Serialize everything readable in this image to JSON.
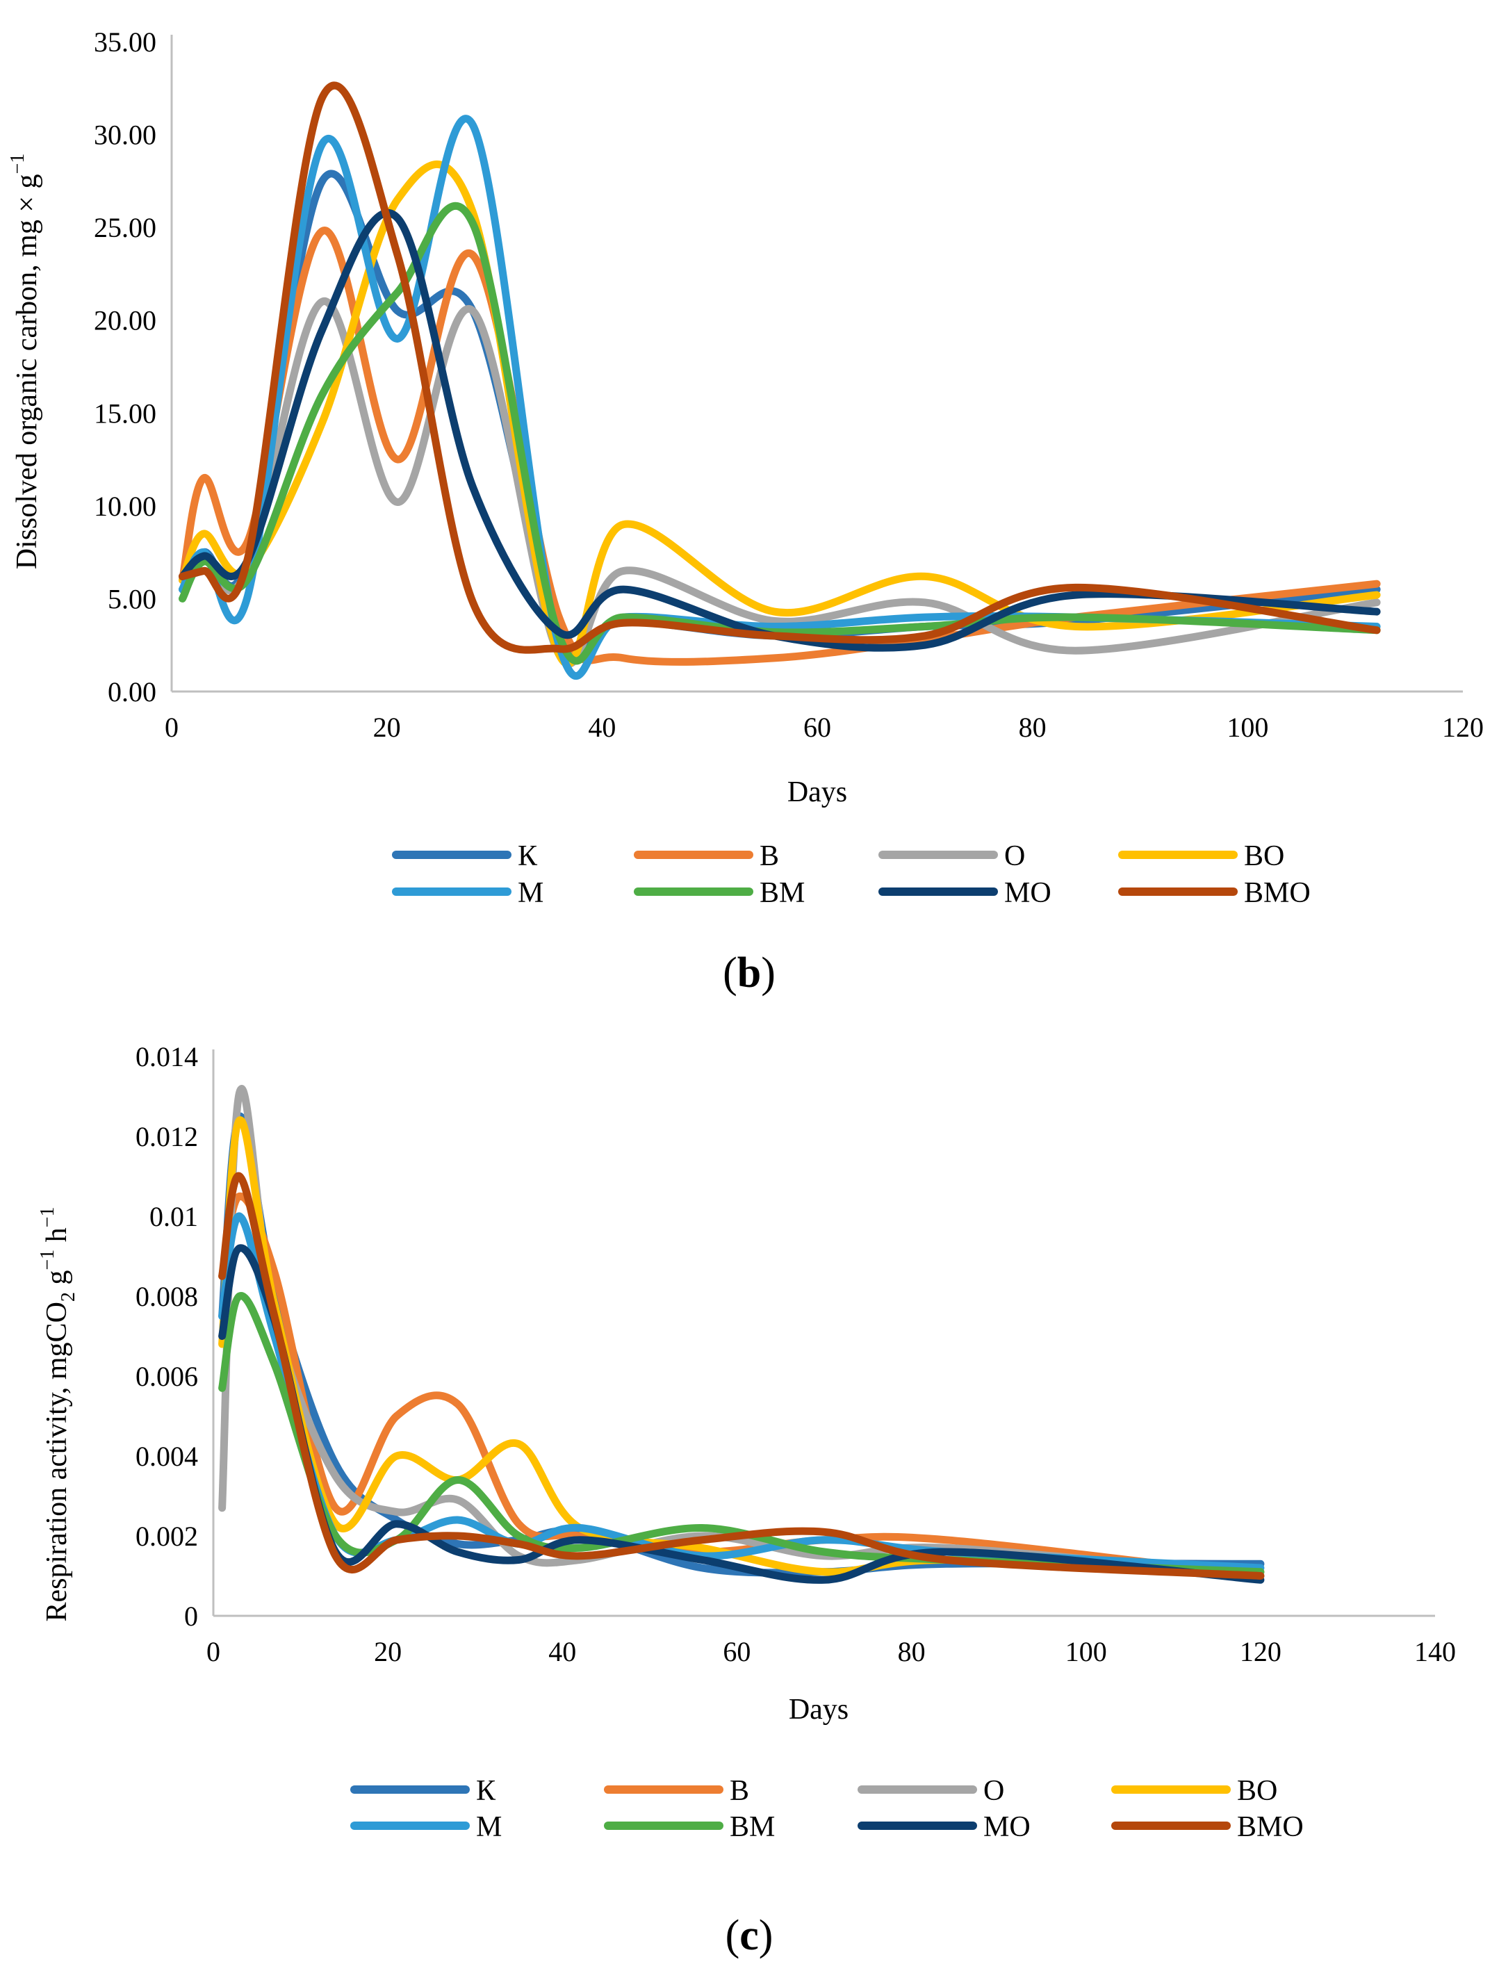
{
  "chart_data": [
    {
      "type": "line",
      "panel_label": "b",
      "xlabel": "Days",
      "ylabel": "Dissolved organic carbon, mg × g",
      "ylabel_sup": "−1",
      "xlim": [
        0,
        120
      ],
      "ylim": [
        0,
        35
      ],
      "xticks": [
        "0",
        "20",
        "40",
        "60",
        "80",
        "100",
        "120"
      ],
      "yticks": [
        "0.00",
        "5.00",
        "10.00",
        "15.00",
        "20.00",
        "25.00",
        "30.00",
        "35.00"
      ],
      "xtick_values": [
        0,
        20,
        40,
        60,
        80,
        100,
        120
      ],
      "ytick_values": [
        0,
        5,
        10,
        15,
        20,
        25,
        30,
        35
      ],
      "legend_position": "bottom",
      "x": [
        1,
        3,
        7,
        14,
        21,
        28,
        36,
        42,
        56,
        70,
        84,
        112
      ],
      "series": [
        {
          "name": "К",
          "color": "#2E75B6",
          "values": [
            5.5,
            7.5,
            7.0,
            27.5,
            20.5,
            20.5,
            3.0,
            3.8,
            3.0,
            3.5,
            3.8,
            5.5
          ]
        },
        {
          "name": "В",
          "color": "#ED7D31",
          "values": [
            6.0,
            11.5,
            8.0,
            24.8,
            12.5,
            23.5,
            4.0,
            1.8,
            1.8,
            2.8,
            4.0,
            5.8
          ]
        },
        {
          "name": "О",
          "color": "#A5A5A5",
          "values": [
            6.0,
            6.5,
            6.5,
            21.0,
            10.2,
            20.5,
            2.0,
            6.5,
            3.8,
            4.8,
            2.2,
            4.8
          ]
        },
        {
          "name": "ВО",
          "color": "#FFC000",
          "values": [
            6.0,
            8.5,
            6.5,
            14.5,
            26.5,
            25.8,
            2.0,
            9.0,
            4.3,
            6.2,
            3.5,
            5.2
          ]
        },
        {
          "name": "М",
          "color": "#2E9BD6",
          "values": [
            5.5,
            7.5,
            5.0,
            29.5,
            19.0,
            30.5,
            2.5,
            4.0,
            3.5,
            4.0,
            4.0,
            3.5
          ]
        },
        {
          "name": "ВМ",
          "color": "#4EAD45",
          "values": [
            5.0,
            7.0,
            6.0,
            16.0,
            21.5,
            25.2,
            3.0,
            4.0,
            3.2,
            3.5,
            4.0,
            3.3
          ]
        },
        {
          "name": "МО",
          "color": "#0C3E6F",
          "values": [
            6.2,
            7.3,
            7.0,
            19.5,
            25.5,
            11.0,
            3.2,
            5.5,
            3.0,
            2.5,
            5.2,
            4.3
          ]
        },
        {
          "name": "ВМО",
          "color": "#B5470B",
          "values": [
            6.2,
            6.5,
            7.0,
            32.0,
            23.5,
            4.8,
            2.3,
            3.7,
            3.0,
            3.0,
            5.6,
            3.3
          ]
        }
      ]
    },
    {
      "type": "line",
      "panel_label": "c",
      "xlabel": "Days",
      "ylabel": "Respiration activity,  mgCO",
      "ylabel_sub": "2",
      "ylabel_tail": " g",
      "ylabel_sup1": "−1",
      "ylabel_mid": " h",
      "ylabel_sup2": "−1",
      "xlim": [
        0,
        140
      ],
      "ylim": [
        0,
        0.014
      ],
      "xticks": [
        "0",
        "20",
        "40",
        "60",
        "80",
        "100",
        "120",
        "140"
      ],
      "yticks": [
        "0",
        "0.002",
        "0.004",
        "0.006",
        "0.008",
        "0.01",
        "0.012",
        "0.014"
      ],
      "xtick_values": [
        0,
        20,
        40,
        60,
        80,
        100,
        120,
        140
      ],
      "ytick_values": [
        0,
        0.002,
        0.004,
        0.006,
        0.008,
        0.01,
        0.012,
        0.014
      ],
      "legend_position": "bottom",
      "x": [
        1,
        3,
        7,
        14,
        21,
        28,
        35,
        42,
        56,
        70,
        84,
        120
      ],
      "series": [
        {
          "name": "К",
          "color": "#2E75B6",
          "values": [
            0.0075,
            0.0125,
            0.0082,
            0.0038,
            0.0024,
            0.0018,
            0.0019,
            0.0021,
            0.0012,
            0.0011,
            0.0013,
            0.0013
          ]
        },
        {
          "name": "В",
          "color": "#ED7D31",
          "values": [
            0.0085,
            0.0105,
            0.0086,
            0.0027,
            0.005,
            0.0053,
            0.0023,
            0.002,
            0.0016,
            0.0019,
            0.0019,
            0.001
          ]
        },
        {
          "name": "О",
          "color": "#A5A5A5",
          "values": [
            0.0027,
            0.0131,
            0.0075,
            0.0035,
            0.0026,
            0.0029,
            0.0015,
            0.0014,
            0.002,
            0.0015,
            0.0017,
            0.001
          ]
        },
        {
          "name": "ВО",
          "color": "#FFC000",
          "values": [
            0.0068,
            0.0124,
            0.0078,
            0.0023,
            0.004,
            0.0034,
            0.0043,
            0.0022,
            0.0017,
            0.0011,
            0.0014,
            0.0011
          ]
        },
        {
          "name": "М",
          "color": "#2E9BD6",
          "values": [
            0.0075,
            0.01,
            0.007,
            0.002,
            0.0019,
            0.0024,
            0.0018,
            0.0022,
            0.0015,
            0.0019,
            0.0016,
            0.0012
          ]
        },
        {
          "name": "ВМ",
          "color": "#4EAD45",
          "values": [
            0.0057,
            0.008,
            0.0063,
            0.002,
            0.0019,
            0.0034,
            0.002,
            0.0017,
            0.0022,
            0.0016,
            0.0014,
            0.0011
          ]
        },
        {
          "name": "МО",
          "color": "#0C3E6F",
          "values": [
            0.007,
            0.0092,
            0.0074,
            0.0016,
            0.0023,
            0.0016,
            0.0014,
            0.0019,
            0.0014,
            0.0009,
            0.0016,
            0.0009
          ]
        },
        {
          "name": "ВМО",
          "color": "#B5470B",
          "values": [
            0.0085,
            0.011,
            0.0075,
            0.0015,
            0.0019,
            0.002,
            0.0018,
            0.0015,
            0.0019,
            0.0021,
            0.0014,
            0.001
          ]
        }
      ]
    }
  ]
}
